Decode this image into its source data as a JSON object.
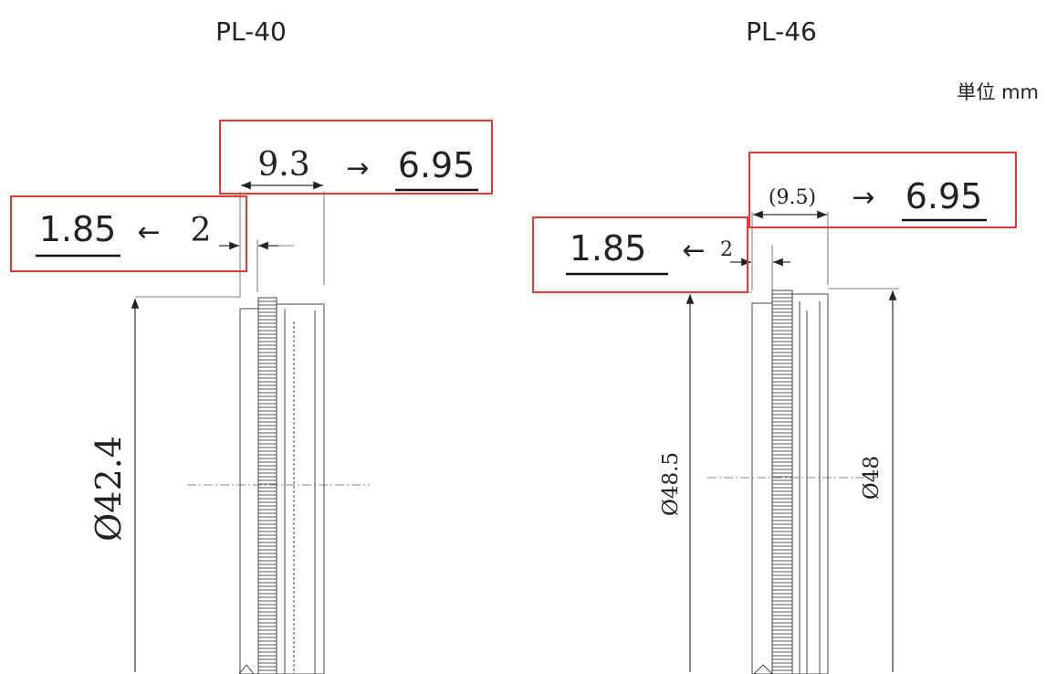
{
  "titles": {
    "left": "PL-40",
    "right": "PL-46"
  },
  "unit": "単位 mm",
  "pl40": {
    "width_old": "9.3",
    "width_new": "6.95",
    "offset_old": "2",
    "offset_new": "1.85",
    "diameter": "Ø42.4"
  },
  "pl46": {
    "width_old": "(9.5)",
    "width_new": "6.95",
    "offset_old": "2",
    "offset_new": "1.85",
    "diameter_outer": "Ø48.5",
    "diameter_inner": "Ø48"
  },
  "symbols": {
    "arrow_right": "→",
    "arrow_left": "←"
  },
  "colors": {
    "highlight_box": "#e53935",
    "line": "#333333"
  }
}
